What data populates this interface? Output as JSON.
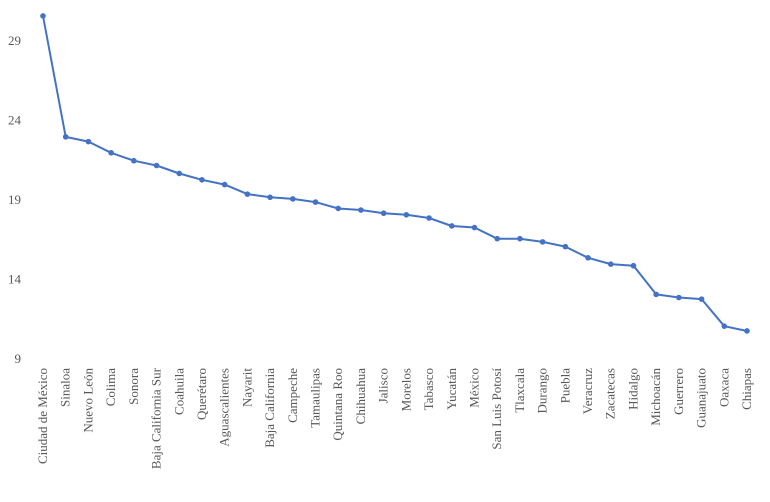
{
  "chart_data": {
    "type": "line",
    "title": "",
    "xlabel": "",
    "ylabel": "",
    "ylim": [
      9,
      31
    ],
    "yticks": [
      9,
      14,
      19,
      24,
      29
    ],
    "grid": false,
    "legend": "none",
    "line_color": "#4472C4",
    "categories": [
      "Ciudad de México",
      "Sinaloa",
      "Nuevo León",
      "Colima",
      "Sonora",
      "Baja California Sur",
      "Coahuila",
      "Querétaro",
      "Aguascalientes",
      "Nayarit",
      "Baja California",
      "Campeche",
      "Tamaulipas",
      "Quintana Roo",
      "Chihuahua",
      "Jalisco",
      "Morelos",
      "Tabasco",
      "Yucatán",
      "México",
      "San Luis Potosí",
      "Tlaxcala",
      "Durango",
      "Puebla",
      "Veracruz",
      "Zacatecas",
      "Hidalgo",
      "Michoacán",
      "Guerrero",
      "Guanajuato",
      "Oaxaca",
      "Chiapas"
    ],
    "values": [
      30.5,
      22.9,
      22.6,
      21.9,
      21.4,
      21.1,
      20.6,
      20.2,
      19.9,
      19.3,
      19.1,
      19.0,
      18.8,
      18.4,
      18.3,
      18.1,
      18.0,
      17.8,
      17.3,
      17.2,
      16.5,
      16.5,
      16.3,
      16.0,
      15.3,
      14.9,
      14.8,
      13.0,
      12.8,
      12.7,
      11.0,
      10.7
    ]
  }
}
